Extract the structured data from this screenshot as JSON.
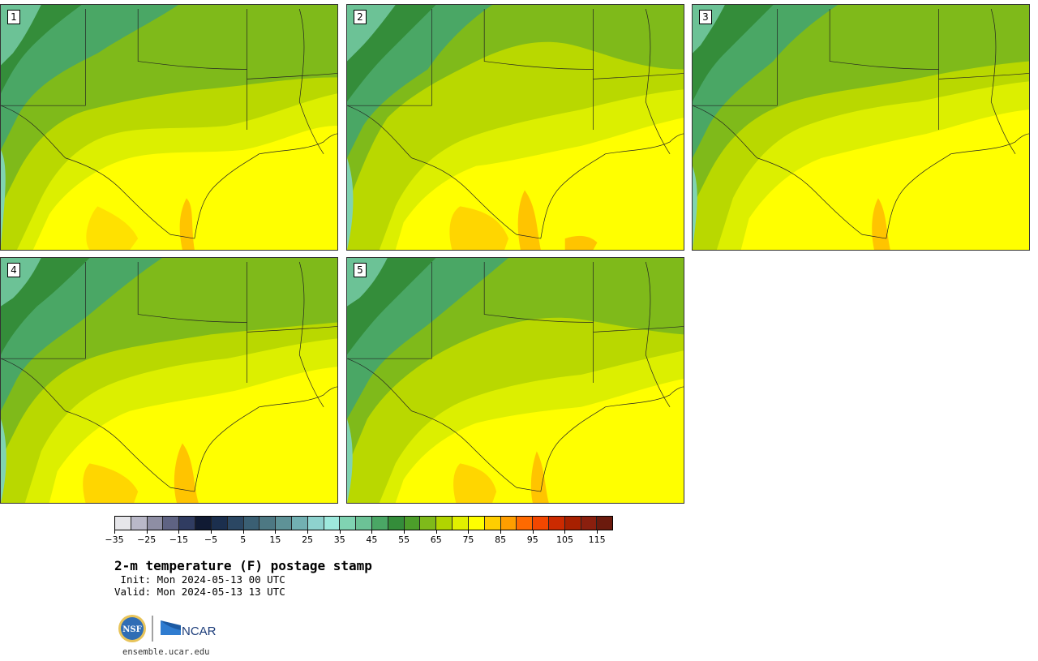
{
  "panels": [
    {
      "label": "1"
    },
    {
      "label": "2"
    },
    {
      "label": "3"
    },
    {
      "label": "4"
    },
    {
      "label": "5"
    }
  ],
  "title": "2-m temperature (F) postage stamp",
  "init": " Init: Mon 2024-05-13 00 UTC",
  "valid": "Valid: Mon 2024-05-13 13 UTC",
  "colorbar": {
    "ticks": [
      "−35",
      "−25",
      "−15",
      "−5",
      "5",
      "15",
      "25",
      "35",
      "45",
      "55",
      "65",
      "75",
      "85",
      "95",
      "105",
      "115"
    ],
    "min": -40,
    "max": 115,
    "step": 5,
    "colors": [
      "#e6e6ea",
      "#b9b8c8",
      "#8e8ea4",
      "#5f6383",
      "#303c61",
      "#101a33",
      "#1b2f4e",
      "#2b4763",
      "#3a5f73",
      "#4d7883",
      "#5e9297",
      "#72b0b2",
      "#8ed2ce",
      "#9ee9dd",
      "#80d3b2",
      "#6cc296",
      "#4aa765",
      "#348d3a",
      "#4c9e2a",
      "#7fba1a",
      "#b1d400",
      "#e1ef00",
      "#ffff00",
      "#ffce00",
      "#ff9e00",
      "#ff6a00",
      "#f24700",
      "#cc2a00",
      "#a82000",
      "#8a1f0e",
      "#6b1a0d"
    ]
  },
  "logos": {
    "nsf": "NSF",
    "ncar": "NCAR"
  },
  "site": "ensemble.ucar.edu",
  "colors": {
    "warm": "#ffff00",
    "mild": "#b9d800",
    "cool": "#7fba1a",
    "cold": "#3e9437",
    "orange": "#ffc400"
  }
}
